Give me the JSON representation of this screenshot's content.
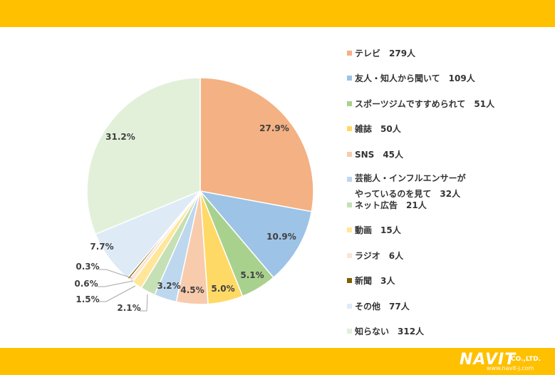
{
  "chart_data": {
    "type": "pie",
    "title": "",
    "series": [
      {
        "label": "テレビ　279人",
        "value": 27.9,
        "color": "#F4B183",
        "value_label": "27.9%"
      },
      {
        "label": "友人・知人から聞いて　109人",
        "value": 10.9,
        "color": "#9DC3E6",
        "value_label": "10.9%"
      },
      {
        "label": "スポーツジムですすめられて　51人",
        "value": 5.1,
        "color": "#A9D18E",
        "value_label": "5.1%"
      },
      {
        "label": "雑誌　50人",
        "value": 5.0,
        "color": "#FFD966",
        "value_label": "5.0%"
      },
      {
        "label": "SNS　45人",
        "value": 4.5,
        "color": "#F8CBAD",
        "value_label": "4.5%"
      },
      {
        "label": "芸能人・インフルエンサーが\nやっているのを見て　32人",
        "value": 3.2,
        "color": "#BDD7EE",
        "value_label": "3.2%"
      },
      {
        "label": "ネット広告　21人",
        "value": 2.1,
        "color": "#C5E0B4",
        "value_label": "2.1%"
      },
      {
        "label": "動画　15人",
        "value": 1.5,
        "color": "#FFE699",
        "value_label": "1.5%"
      },
      {
        "label": "ラジオ　6人",
        "value": 0.6,
        "color": "#FBE5D6",
        "value_label": "0.6%"
      },
      {
        "label": "新聞　3人",
        "value": 0.3,
        "color": "#7F6000",
        "value_label": "0.3%"
      },
      {
        "label": "その他　77人",
        "value": 7.7,
        "color": "#DEEBF7",
        "value_label": "7.7%"
      },
      {
        "label": "知らない　312人",
        "value": 31.2,
        "color": "#E2F0D9",
        "value_label": "31.2%"
      }
    ]
  },
  "logo": {
    "main": "NAVIT",
    "co": "CO.,LTD.",
    "url": "www.navit-j.com"
  },
  "colors": {
    "bar": "#FFC000"
  }
}
